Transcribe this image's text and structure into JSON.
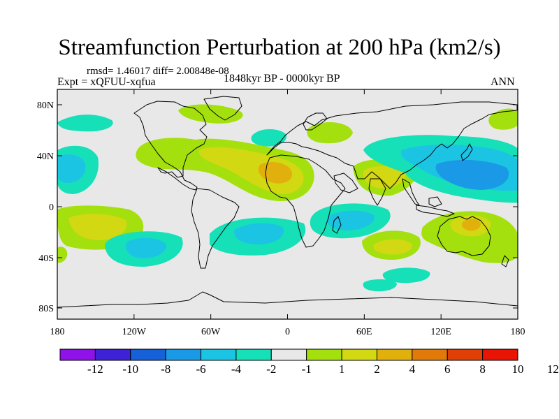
{
  "header": {
    "title": "Streamfunction Perturbation at 200 hPa (km2/s)",
    "stats": "rmsd= 1.46017 diff= 2.00848e-08",
    "experiment": "Expt = xQFUU-xqfua",
    "period": "1848kyr BP - 0000kyr BP",
    "season": "ANN"
  },
  "map": {
    "lat_ticks": [
      "80N",
      "40N",
      "0",
      "40S",
      "80S"
    ],
    "lon_ticks": [
      "180",
      "120W",
      "60W",
      "0",
      "60E",
      "120E",
      "180"
    ],
    "ocean_color": "#e8e8e8"
  },
  "colorbar": {
    "colors": [
      "#8f12e8",
      "#3e22d6",
      "#1660d8",
      "#1a9ae6",
      "#1cc4e4",
      "#16e0b8",
      "#e8e8e8",
      "#a4e00e",
      "#d2d812",
      "#e2b00c",
      "#e27a0a",
      "#e04006",
      "#e81404"
    ],
    "labels": [
      "-12",
      "-10",
      "-8",
      "-6",
      "-4",
      "-2",
      "-1",
      "1",
      "2",
      "4",
      "6",
      "8",
      "10",
      "12"
    ]
  }
}
